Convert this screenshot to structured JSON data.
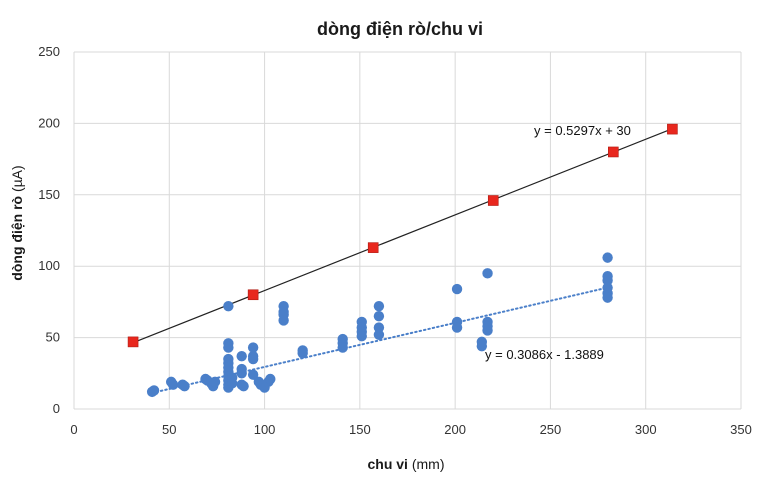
{
  "chart_data": {
    "type": "scatter",
    "title": "dòng điện rò/chu vi",
    "xlabel": "chu vi",
    "xlabel_unit": "(mm)",
    "ylabel": "dòng điện rò",
    "ylabel_unit": "(µA)",
    "xlim": [
      0,
      350
    ],
    "ylim": [
      0,
      250
    ],
    "xticks": [
      0,
      50,
      100,
      150,
      200,
      250,
      300,
      350
    ],
    "yticks": [
      0,
      50,
      100,
      150,
      200,
      250
    ],
    "grid": "vertical and horizontal",
    "series": [
      {
        "marker": "square",
        "color": "#e8271e",
        "points": [
          [
            31,
            47
          ],
          [
            94,
            80
          ],
          [
            157,
            113
          ],
          [
            220,
            146
          ],
          [
            283,
            180
          ],
          [
            314,
            196
          ]
        ],
        "trendline": {
          "style": "solid",
          "color": "#222222",
          "from": 31,
          "to": 314,
          "slope": 0.5297,
          "intercept": 30,
          "equation": "y = 0.5297x + 30"
        }
      },
      {
        "marker": "circle",
        "color": "#4a7fc9",
        "points": [
          [
            41,
            12
          ],
          [
            42,
            13
          ],
          [
            51,
            19
          ],
          [
            52,
            17
          ],
          [
            57,
            17
          ],
          [
            58,
            16
          ],
          [
            69,
            21
          ],
          [
            70,
            20
          ],
          [
            72,
            18
          ],
          [
            73,
            16
          ],
          [
            74,
            19
          ],
          [
            81,
            72
          ],
          [
            81,
            46
          ],
          [
            81,
            43
          ],
          [
            81,
            35
          ],
          [
            81,
            32
          ],
          [
            81,
            29
          ],
          [
            81,
            26
          ],
          [
            81,
            23
          ],
          [
            81,
            20
          ],
          [
            81,
            17
          ],
          [
            81,
            15
          ],
          [
            83,
            22
          ],
          [
            83,
            18
          ],
          [
            88,
            37
          ],
          [
            88,
            28
          ],
          [
            88,
            25
          ],
          [
            88,
            17
          ],
          [
            89,
            16
          ],
          [
            94,
            43
          ],
          [
            94,
            37
          ],
          [
            94,
            35
          ],
          [
            94,
            24
          ],
          [
            97,
            19
          ],
          [
            98,
            17
          ],
          [
            100,
            15
          ],
          [
            102,
            19
          ],
          [
            103,
            21
          ],
          [
            110,
            72
          ],
          [
            110,
            68
          ],
          [
            110,
            66
          ],
          [
            110,
            62
          ],
          [
            120,
            41
          ],
          [
            120,
            39
          ],
          [
            141,
            49
          ],
          [
            141,
            46
          ],
          [
            141,
            43
          ],
          [
            151,
            61
          ],
          [
            151,
            57
          ],
          [
            151,
            54
          ],
          [
            151,
            51
          ],
          [
            160,
            72
          ],
          [
            160,
            65
          ],
          [
            160,
            57
          ],
          [
            160,
            52
          ],
          [
            201,
            84
          ],
          [
            201,
            61
          ],
          [
            201,
            57
          ],
          [
            214,
            47
          ],
          [
            214,
            44
          ],
          [
            217,
            95
          ],
          [
            217,
            61
          ],
          [
            217,
            58
          ],
          [
            217,
            55
          ],
          [
            280,
            106
          ],
          [
            280,
            93
          ],
          [
            280,
            90
          ],
          [
            280,
            85
          ],
          [
            280,
            81
          ],
          [
            280,
            78
          ]
        ],
        "trendline": {
          "style": "dotted",
          "color": "#4a7fc9",
          "from": 41,
          "to": 280,
          "slope": 0.3086,
          "intercept": -1.3889,
          "equation": "y = 0.3086x - 1.3889"
        }
      }
    ]
  }
}
